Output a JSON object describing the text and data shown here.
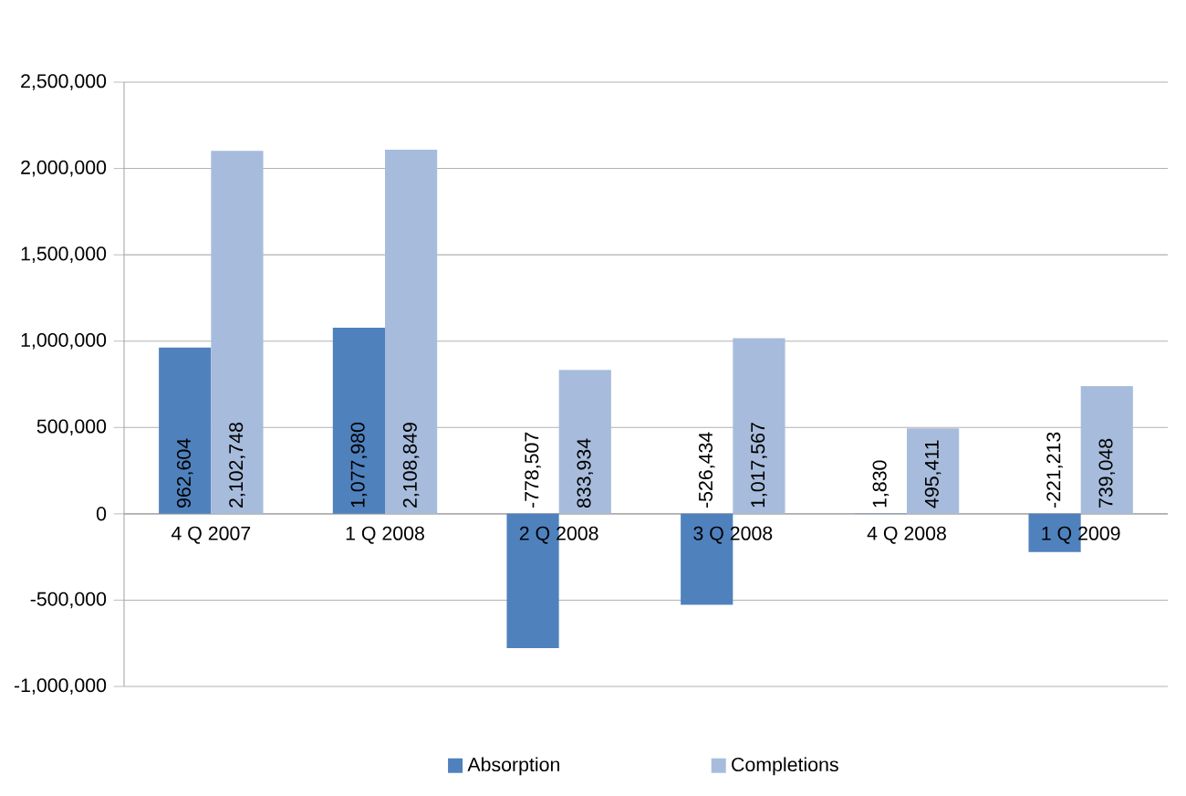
{
  "chart_data": {
    "type": "bar",
    "categories": [
      "4 Q 2007",
      "1 Q 2008",
      "2 Q 2008",
      "3 Q 2008",
      "4 Q 2008",
      "1 Q 2009"
    ],
    "series": [
      {
        "name": "Absorption",
        "color": "#4f81bd",
        "values": [
          962604,
          1077980,
          -778507,
          -526434,
          1830,
          -221213
        ],
        "value_labels": [
          "962,604",
          "1,077,980",
          "-778,507",
          "-526,434",
          "1,830",
          "-221,213"
        ]
      },
      {
        "name": "Completions",
        "color": "#a7bcdc",
        "values": [
          2102748,
          2108849,
          833934,
          1017567,
          495411,
          739048
        ],
        "value_labels": [
          "2,102,748",
          "2,108,849",
          "833,934",
          "1,017,567",
          "495,411",
          "739,048"
        ]
      }
    ],
    "ylim": [
      -1000000,
      2500000
    ],
    "yticks": [
      {
        "value": -1000000,
        "label": "-1,000,000"
      },
      {
        "value": -500000,
        "label": "-500,000"
      },
      0,
      {
        "value": 500000,
        "label": "500,000"
      },
      {
        "value": 1000000,
        "label": "1,000,000"
      },
      {
        "value": 1500000,
        "label": "1,500,000"
      },
      {
        "value": 2000000,
        "label": "2,000,000"
      },
      {
        "value": 2500000,
        "label": "2,500,000"
      }
    ],
    "grid": "y",
    "legend": "bottom"
  }
}
